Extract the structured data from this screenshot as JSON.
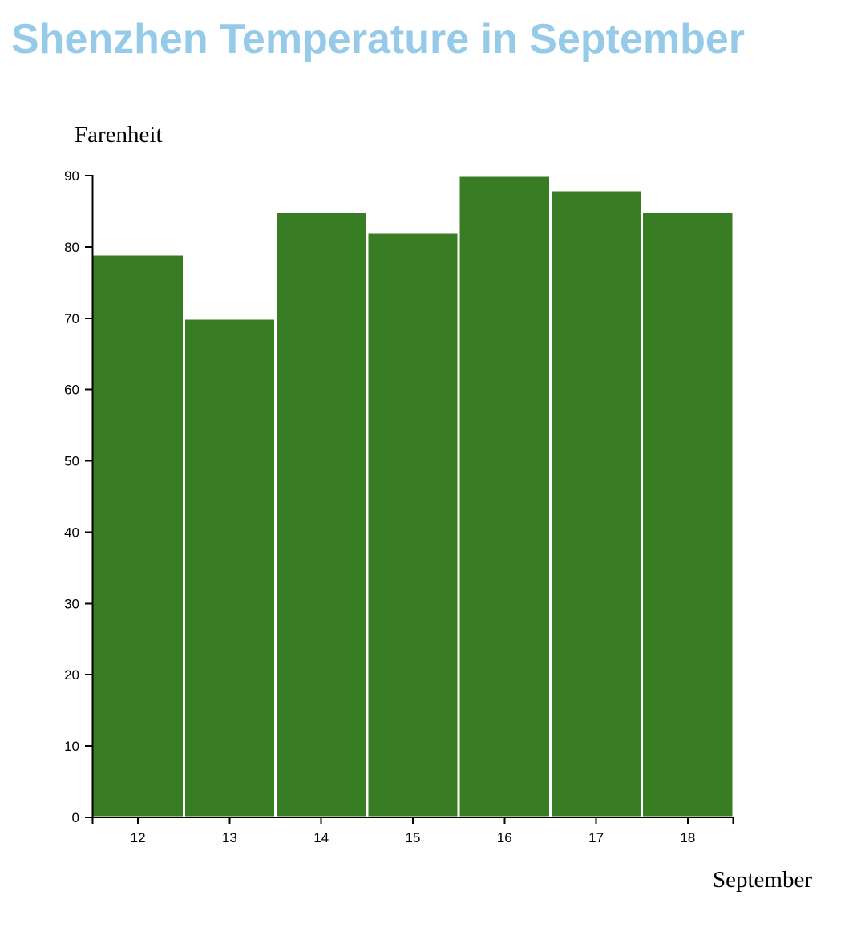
{
  "colors": {
    "title": "#95cbe9",
    "bar": "#387d23",
    "bar_outline": "#ffffff",
    "axis": "#000000"
  },
  "chart_data": {
    "type": "bar",
    "title": "Shenzhen Temperature in September",
    "xlabel": "September",
    "ylabel": "Farenheit",
    "categories": [
      "12",
      "13",
      "14",
      "15",
      "16",
      "17",
      "18"
    ],
    "values": [
      79,
      70,
      85,
      82,
      90,
      88,
      85
    ],
    "ylim": [
      0,
      90
    ],
    "yticks": [
      0,
      10,
      20,
      30,
      40,
      50,
      60,
      70,
      80,
      90
    ],
    "grid": false,
    "legend": "none"
  }
}
